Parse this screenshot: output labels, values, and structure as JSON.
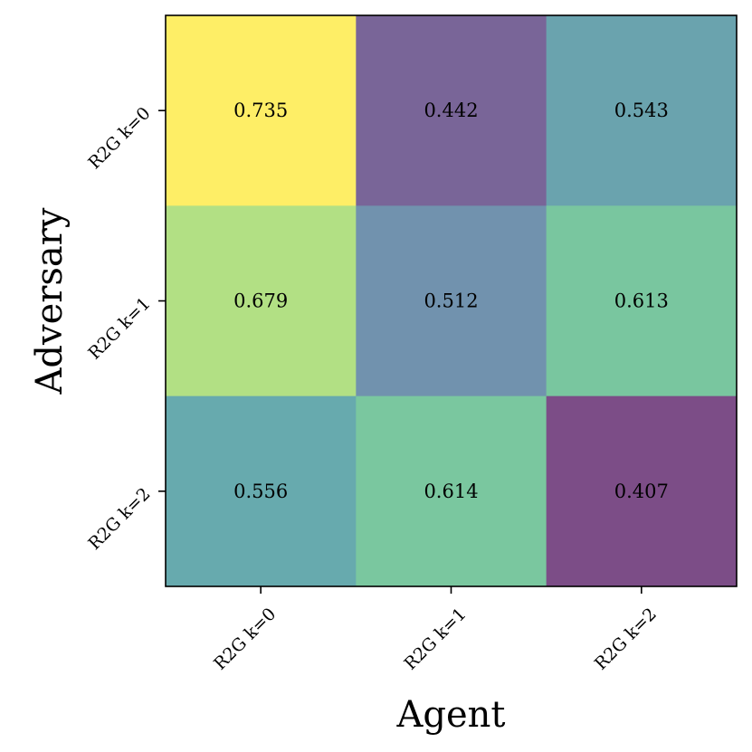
{
  "chart_data": {
    "type": "heatmap",
    "title": "",
    "xlabel": "Agent",
    "ylabel": "Adversary",
    "x_categories": [
      "R2G k=0",
      "R2G k=1",
      "R2G k=2"
    ],
    "y_categories": [
      "R2G k=0",
      "R2G k=1",
      "R2G k=2"
    ],
    "values": [
      [
        0.735,
        0.442,
        0.543
      ],
      [
        0.679,
        0.512,
        0.613
      ],
      [
        0.556,
        0.614,
        0.407
      ]
    ],
    "colormap": "viridis",
    "value_range": [
      0.407,
      0.735
    ],
    "grid": false,
    "legend": "none"
  }
}
